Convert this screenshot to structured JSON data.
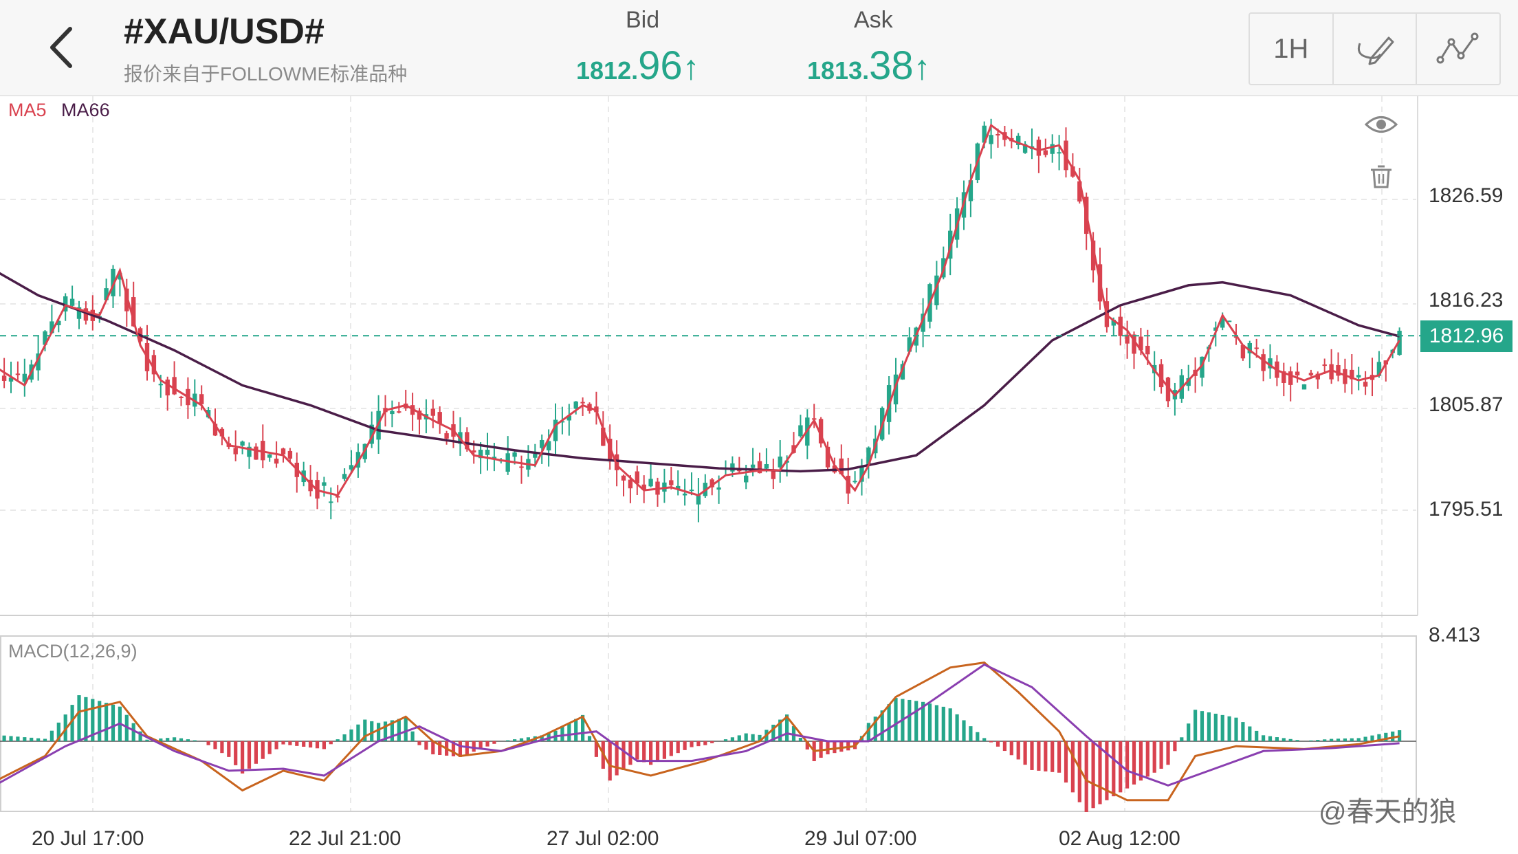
{
  "header": {
    "symbol": "#XAU/USD#",
    "subtitle": "报价来自于FOLLOWME标准品种",
    "bid": {
      "label": "Bid",
      "prefix": "1812.",
      "digits": "96",
      "arrow": "↑"
    },
    "ask": {
      "label": "Ask",
      "prefix": "1813.",
      "digits": "38",
      "arrow": "↑"
    },
    "timeframe": "1H",
    "icons": [
      "chevron-left-icon",
      "draw-pen-icon",
      "indicator-line-icon"
    ]
  },
  "legend": {
    "ma5": "MA5",
    "ma66": "MA66",
    "macd": "MACD(12,26,9)"
  },
  "price_axis": {
    "labels": [
      "1826.59",
      "1816.23",
      "1805.87",
      "1795.51"
    ],
    "current": "1812.96",
    "macd_top": "8.413"
  },
  "time_axis": [
    "20 Jul 17:00",
    "22 Jul 21:00",
    "27 Jul 02:00",
    "29 Jul 07:00",
    "02 Aug 12:00"
  ],
  "watermark": "@春天的狼",
  "colors": {
    "up": "#25a68a",
    "down": "#d9424f",
    "ma5": "#d9424f",
    "ma66": "#4a1d48",
    "diff": "#c8641e",
    "dea": "#8a3fb0"
  },
  "chart_data": [
    {
      "type": "candlestick",
      "title": "",
      "ylim": [
        1786,
        1838
      ],
      "grid": true,
      "series": [
        {
          "name": "MA5",
          "note": "5-period moving average"
        },
        {
          "name": "MA66",
          "note": "66-period moving average"
        }
      ],
      "x_ticks": [
        "20 Jul 17:00",
        "22 Jul 21:00",
        "27 Jul 02:00",
        "29 Jul 07:00",
        "02 Aug 12:00"
      ],
      "y_ticks": [
        1826.59,
        1816.23,
        1805.87,
        1795.51
      ],
      "current_price": 1812.96,
      "ma66_points": [
        [
          -5,
          1820.5
        ],
        [
          4,
          1817.0
        ],
        [
          14,
          1814.5
        ],
        [
          24,
          1811.5
        ],
        [
          34,
          1808.0
        ],
        [
          44,
          1806.0
        ],
        [
          54,
          1803.5
        ],
        [
          64,
          1802.5
        ],
        [
          74,
          1801.5
        ],
        [
          84,
          1800.7
        ],
        [
          94,
          1800.2
        ],
        [
          104,
          1799.7
        ],
        [
          116,
          1799.4
        ],
        [
          123,
          1799.6
        ],
        [
          133,
          1801.0
        ],
        [
          143,
          1806.0
        ],
        [
          153,
          1812.5
        ],
        [
          163,
          1816.0
        ],
        [
          173,
          1818.0
        ],
        [
          178,
          1818.3
        ],
        [
          188,
          1817.0
        ],
        [
          198,
          1814.0
        ],
        [
          204,
          1812.9
        ]
      ],
      "ma5_points": [
        [
          -5,
          1811.0
        ],
        [
          2,
          1808.0
        ],
        [
          8,
          1816.0
        ],
        [
          13,
          1815.0
        ],
        [
          16,
          1819.5
        ],
        [
          19,
          1812.0
        ],
        [
          22,
          1808.5
        ],
        [
          28,
          1806.0
        ],
        [
          32,
          1802.0
        ],
        [
          36,
          1801.5
        ],
        [
          40,
          1801.0
        ],
        [
          45,
          1797.5
        ],
        [
          48,
          1797.0
        ],
        [
          52,
          1801.5
        ],
        [
          55,
          1805.5
        ],
        [
          58,
          1806.0
        ],
        [
          62,
          1804.5
        ],
        [
          65,
          1803.5
        ],
        [
          68,
          1801.0
        ],
        [
          72,
          1800.5
        ],
        [
          77,
          1800.0
        ],
        [
          80,
          1804.0
        ],
        [
          84,
          1806.0
        ],
        [
          86,
          1805.5
        ],
        [
          89,
          1800.0
        ],
        [
          93,
          1797.5
        ],
        [
          97,
          1797.8
        ],
        [
          101,
          1797.0
        ],
        [
          105,
          1799.0
        ],
        [
          110,
          1799.5
        ],
        [
          113,
          1799.5
        ],
        [
          118,
          1804.5
        ],
        [
          121,
          1800.0
        ],
        [
          124,
          1797.5
        ],
        [
          126,
          1800.0
        ],
        [
          130,
          1808.0
        ],
        [
          133,
          1813.0
        ],
        [
          137,
          1819.5
        ],
        [
          141,
          1828.5
        ],
        [
          144,
          1834.0
        ],
        [
          147,
          1832.5
        ],
        [
          151,
          1831.5
        ],
        [
          154,
          1832.0
        ],
        [
          157,
          1828.5
        ],
        [
          161,
          1815.0
        ],
        [
          164,
          1813.5
        ],
        [
          168,
          1809.5
        ],
        [
          171,
          1807.0
        ],
        [
          175,
          1810.0
        ],
        [
          178,
          1815.0
        ],
        [
          181,
          1812.0
        ],
        [
          186,
          1809.5
        ],
        [
          190,
          1808.5
        ],
        [
          194,
          1809.5
        ],
        [
          198,
          1808.5
        ],
        [
          201,
          1809.0
        ],
        [
          204,
          1812.5
        ]
      ]
    },
    {
      "type": "bar",
      "title": "MACD(12,26,9)",
      "series": [
        {
          "name": "Histogram"
        },
        {
          "name": "DIFF"
        },
        {
          "name": "DEA"
        }
      ],
      "ylim": [
        -8.413,
        8.413
      ],
      "diff_points": [
        [
          -5,
          -5.0
        ],
        [
          5,
          -1.5
        ],
        [
          10,
          3.0
        ],
        [
          16,
          4.0
        ],
        [
          20,
          0.5
        ],
        [
          28,
          -2.0
        ],
        [
          34,
          -5.0
        ],
        [
          40,
          -3.0
        ],
        [
          46,
          -4.0
        ],
        [
          52,
          0.5
        ],
        [
          58,
          2.5
        ],
        [
          62,
          0.0
        ],
        [
          66,
          -1.5
        ],
        [
          72,
          -1.0
        ],
        [
          78,
          0.5
        ],
        [
          84,
          2.5
        ],
        [
          88,
          -2.5
        ],
        [
          94,
          -3.5
        ],
        [
          102,
          -2.0
        ],
        [
          110,
          0.0
        ],
        [
          114,
          2.5
        ],
        [
          118,
          -1.0
        ],
        [
          124,
          -0.5
        ],
        [
          130,
          4.5
        ],
        [
          138,
          7.5
        ],
        [
          143,
          8.0
        ],
        [
          148,
          5.0
        ],
        [
          154,
          1.0
        ],
        [
          158,
          -4.0
        ],
        [
          164,
          -6.0
        ],
        [
          170,
          -6.0
        ],
        [
          174,
          -1.5
        ],
        [
          180,
          -0.5
        ],
        [
          190,
          -0.8
        ],
        [
          198,
          -0.3
        ],
        [
          204,
          0.5
        ]
      ],
      "dea_points": [
        [
          -5,
          -5.5
        ],
        [
          8,
          -0.5
        ],
        [
          16,
          1.8
        ],
        [
          24,
          -1.0
        ],
        [
          32,
          -3.0
        ],
        [
          40,
          -2.8
        ],
        [
          46,
          -3.5
        ],
        [
          54,
          0.0
        ],
        [
          60,
          1.5
        ],
        [
          66,
          -0.5
        ],
        [
          72,
          -1.0
        ],
        [
          80,
          0.5
        ],
        [
          86,
          1.0
        ],
        [
          92,
          -2.0
        ],
        [
          100,
          -2.0
        ],
        [
          108,
          -1.0
        ],
        [
          114,
          0.8
        ],
        [
          120,
          0.0
        ],
        [
          126,
          0.0
        ],
        [
          134,
          3.5
        ],
        [
          143,
          7.8
        ],
        [
          150,
          5.5
        ],
        [
          158,
          0.5
        ],
        [
          164,
          -3.0
        ],
        [
          170,
          -4.5
        ],
        [
          176,
          -3.0
        ],
        [
          184,
          -1.0
        ],
        [
          194,
          -0.7
        ],
        [
          204,
          -0.2
        ]
      ]
    }
  ]
}
